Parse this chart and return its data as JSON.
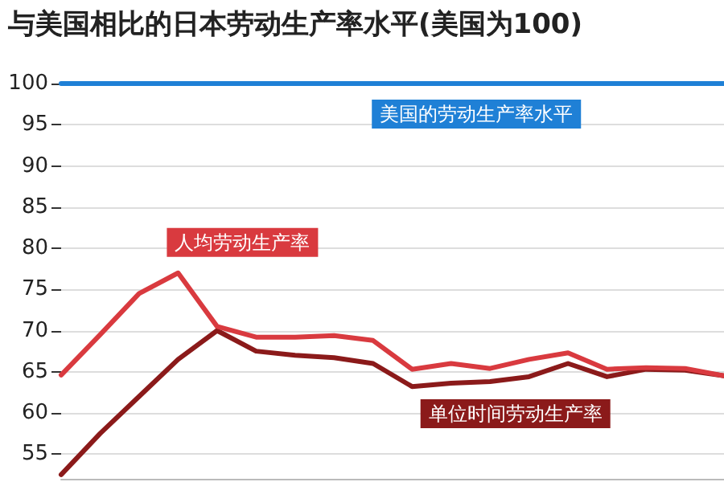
{
  "chart_data": {
    "type": "line",
    "title": "与美国相比的日本劳动生产率水平(美国为100)",
    "categories": [
      null,
      null,
      null,
      null,
      null,
      null,
      null,
      null,
      null,
      null,
      null,
      null,
      null,
      null,
      null,
      null,
      null,
      null
    ],
    "series": [
      {
        "name": "美国的劳动生产率水平",
        "color": "#1f80d6",
        "values": [
          100,
          100,
          100,
          100,
          100,
          100,
          100,
          100,
          100,
          100,
          100,
          100,
          100,
          100,
          100,
          100,
          100,
          100
        ]
      },
      {
        "name": "人均劳动生产率",
        "color": "#d93a3f",
        "values": [
          64.6,
          69.5,
          74.5,
          77,
          70.5,
          69.2,
          69.2,
          69.4,
          68.8,
          65.3,
          66,
          65.4,
          66.5,
          67.3,
          65.3,
          65.5,
          65.4,
          64.5
        ]
      },
      {
        "name": "单位时间劳动生产率",
        "color": "#8b1a1a",
        "values": [
          52.5,
          57.5,
          62,
          66.5,
          70,
          67.5,
          67,
          66.7,
          66,
          63.2,
          63.6,
          63.8,
          64.4,
          66,
          64.4,
          65.3,
          65.2,
          64.5
        ]
      }
    ],
    "ylim": [
      52,
      100
    ],
    "yticks": [
      55,
      60,
      65,
      70,
      75,
      80,
      85,
      90,
      95,
      100
    ],
    "grid": "y",
    "legend": false,
    "tick_labels": "y",
    "marker": "none",
    "line_style": "solid"
  }
}
